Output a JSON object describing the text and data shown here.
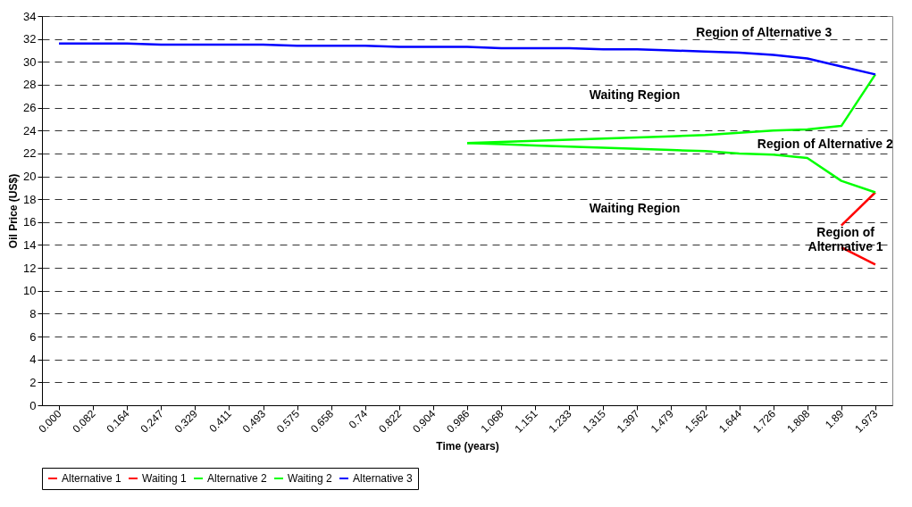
{
  "chart_data": {
    "type": "line",
    "xlabel": "Time (years)",
    "ylabel": "Oil Price (US$)",
    "categories": [
      "0.000",
      "0.082",
      "0.164",
      "0.247",
      "0.329",
      "0.411",
      "0.493",
      "0.575",
      "0.658",
      "0.74",
      "0.822",
      "0.904",
      "0.986",
      "1.068",
      "1.151",
      "1.233",
      "1.315",
      "1.397",
      "1.479",
      "1.562",
      "1.644",
      "1.726",
      "1.808",
      "1.89",
      "1.973"
    ],
    "series": [
      {
        "name": "Alternative 1",
        "color": "#ff0000",
        "values": [
          null,
          null,
          null,
          null,
          null,
          null,
          null,
          null,
          null,
          null,
          null,
          null,
          null,
          null,
          null,
          null,
          null,
          null,
          null,
          null,
          null,
          null,
          null,
          13.8,
          12.3
        ]
      },
      {
        "name": "Waiting 1",
        "color": "#ff0000",
        "values": [
          null,
          null,
          null,
          null,
          null,
          null,
          null,
          null,
          null,
          null,
          null,
          null,
          null,
          null,
          null,
          null,
          null,
          null,
          null,
          null,
          null,
          null,
          null,
          15.7,
          18.6
        ]
      },
      {
        "name": "Alternative 2",
        "color": "#00ff00",
        "values": [
          null,
          null,
          null,
          null,
          null,
          null,
          null,
          null,
          null,
          null,
          null,
          null,
          22.9,
          23.0,
          23.1,
          23.2,
          23.3,
          23.4,
          23.5,
          23.6,
          23.8,
          24.0,
          24.1,
          24.4,
          28.9
        ]
      },
      {
        "name": "Waiting 2",
        "color": "#00ff00",
        "values": [
          null,
          null,
          null,
          null,
          null,
          null,
          null,
          null,
          null,
          null,
          null,
          null,
          22.9,
          22.8,
          22.7,
          22.6,
          22.5,
          22.4,
          22.3,
          22.2,
          22.0,
          21.9,
          21.6,
          19.6,
          18.6
        ]
      },
      {
        "name": "Alternative 3",
        "color": "#0000ff",
        "values": [
          31.6,
          31.6,
          31.6,
          31.5,
          31.5,
          31.5,
          31.5,
          31.4,
          31.4,
          31.4,
          31.3,
          31.3,
          31.3,
          31.2,
          31.2,
          31.2,
          31.1,
          31.1,
          31.0,
          30.9,
          30.8,
          30.6,
          30.3,
          29.6,
          28.9
        ]
      }
    ],
    "ylim": [
      0,
      34
    ],
    "yticks": [
      0,
      2,
      4,
      6,
      8,
      10,
      12,
      14,
      16,
      18,
      20,
      22,
      24,
      26,
      28,
      30,
      32,
      34
    ],
    "grid": "y",
    "legend": "bottom",
    "annotations": [
      "Region of Alternative 3",
      "Waiting Region",
      "Region of Alternative 2",
      "Waiting Region",
      "Region of\nAlternative 1"
    ]
  }
}
